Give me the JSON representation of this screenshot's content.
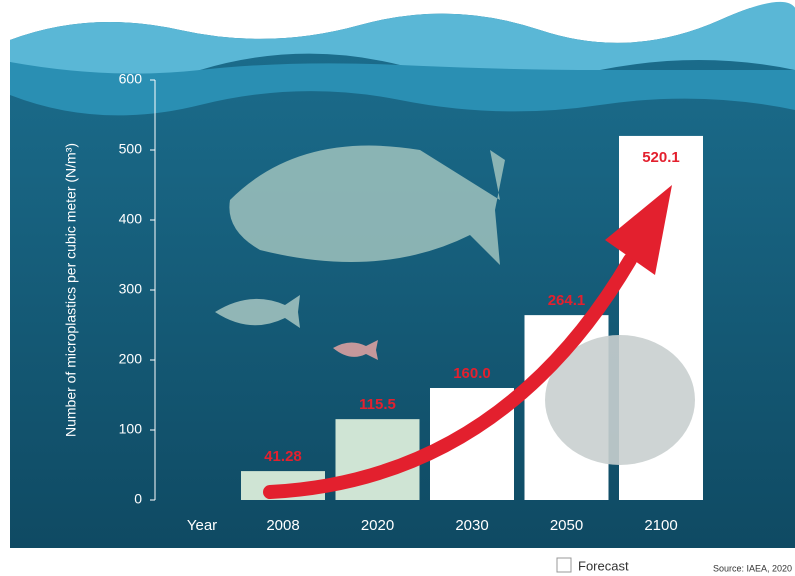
{
  "chart_data": {
    "type": "bar",
    "y_label": "Number of microplastics per cubic meter (N/m³)",
    "x_label": "Year",
    "categories": [
      "2008",
      "2020",
      "2030",
      "2050",
      "2100"
    ],
    "values": [
      41.28,
      115.5,
      160.0,
      264.1,
      520.1
    ],
    "value_labels": [
      "41.28",
      "115.5",
      "160.0",
      "264.1",
      "520.1"
    ],
    "colors": [
      "#cfe4d4",
      "#cfe4d4",
      "#ffffff",
      "#ffffff",
      "#ffffff"
    ],
    "ylim": [
      0,
      600
    ],
    "yticks": [
      0,
      100,
      200,
      300,
      400,
      500,
      600
    ],
    "legend": {
      "label": "Forecast",
      "color": "#ffffff",
      "position": "bottom"
    },
    "source": "Source: IAEA, 2020"
  }
}
